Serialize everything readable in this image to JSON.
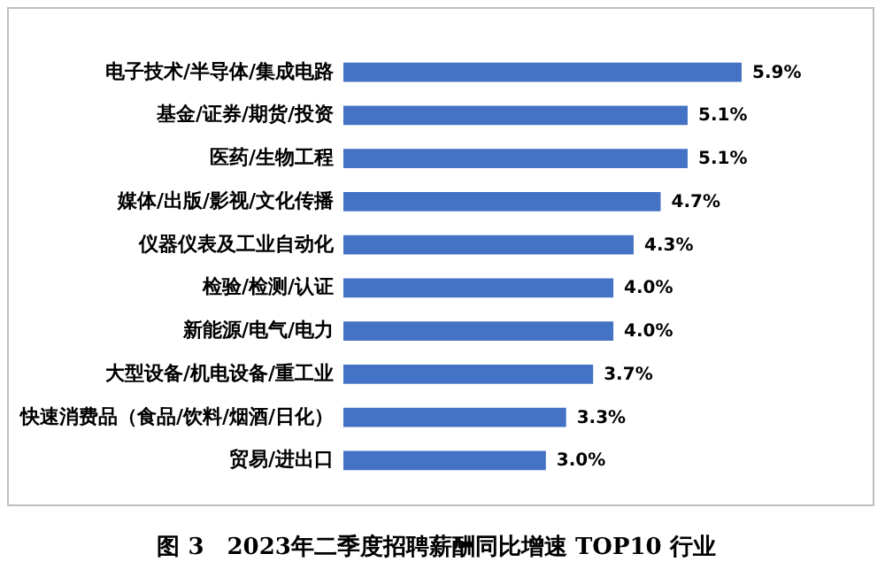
{
  "chart_data": {
    "type": "bar",
    "orientation": "horizontal",
    "title": "图 3　2023年二季度招聘薪酬同比增速 TOP10 行业",
    "categories": [
      "电子技术/半导体/集成电路",
      "基金/证券/期货/投资",
      "医药/生物工程",
      "媒体/出版/影视/文化传播",
      "仪器仪表及工业自动化",
      "检验/检测/认证",
      "新能源/电气/电力",
      "大型设备/机电设备/重工业",
      "快速消费品（食品/饮料/烟酒/日化）",
      "贸易/进出口"
    ],
    "values": [
      5.9,
      5.1,
      5.1,
      4.7,
      4.3,
      4.0,
      4.0,
      3.7,
      3.3,
      3.0
    ],
    "value_labels": [
      "5.9%",
      "5.1%",
      "5.1%",
      "4.7%",
      "4.3%",
      "4.0%",
      "4.0%",
      "3.7%",
      "3.3%",
      "3.0%"
    ],
    "color": "#4472c4"
  }
}
